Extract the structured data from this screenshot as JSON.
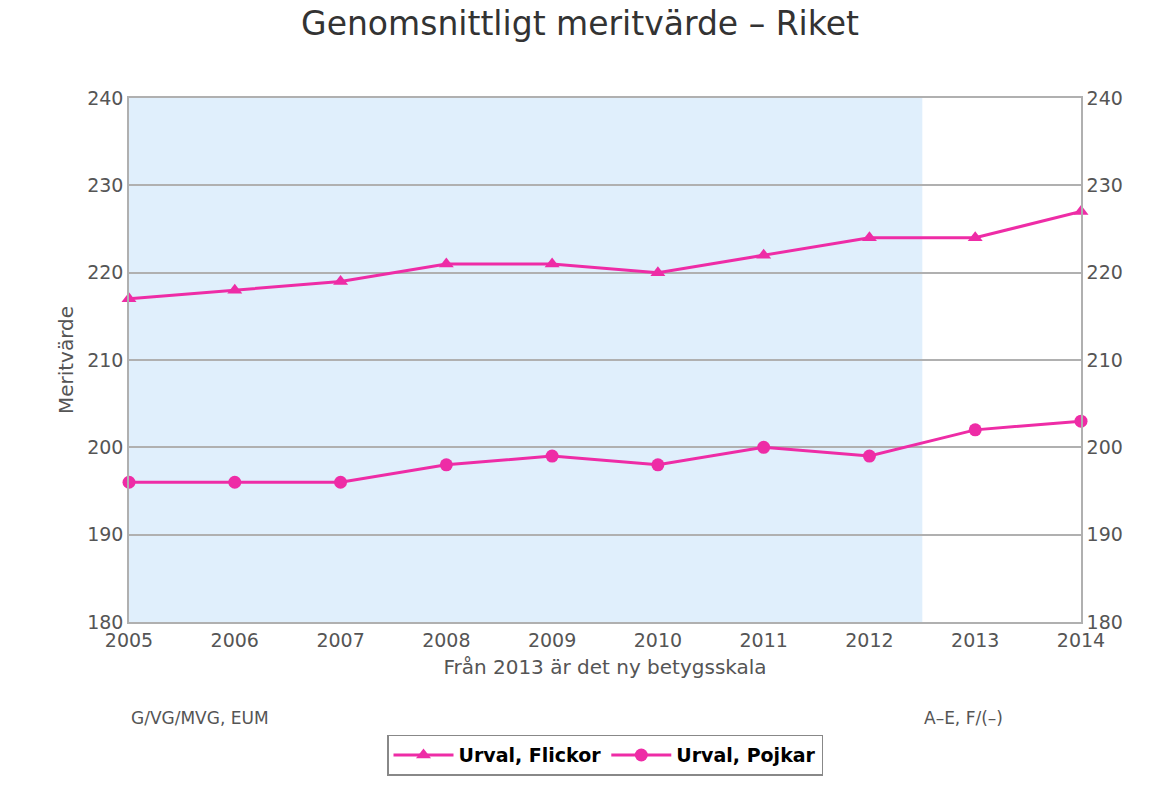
{
  "chart_data": {
    "type": "line",
    "title": "Genomsnittligt meritvärde – Riket",
    "x_label": "Från 2013 är det ny betygsskala",
    "y_label": "Meritvärde",
    "x": [
      2005,
      2006,
      2007,
      2008,
      2009,
      2010,
      2011,
      2012,
      2013,
      2014
    ],
    "series": [
      {
        "name": "Urval, Flickor",
        "color": "#ee2ca6",
        "marker": "triangle",
        "values": [
          217,
          218,
          219,
          221,
          221,
          220,
          222,
          224,
          224,
          227
        ]
      },
      {
        "name": "Urval, Pojkar",
        "color": "#ee2ca6",
        "marker": "circle",
        "values": [
          196,
          196,
          196,
          198,
          199,
          198,
          200,
          199,
          202,
          203
        ]
      }
    ],
    "xlim": [
      2005,
      2014
    ],
    "xticks": [
      2005,
      2006,
      2007,
      2008,
      2009,
      2010,
      2011,
      2012,
      2013,
      2014
    ],
    "ylim": [
      180,
      240
    ],
    "yticks": [
      180,
      190,
      200,
      210,
      220,
      230,
      240
    ],
    "y2lim": [
      180,
      240
    ],
    "y2ticks": [
      180,
      190,
      200,
      210,
      220,
      230,
      240
    ],
    "shaded_x": [
      2005,
      2012.5
    ],
    "annotations": [
      {
        "text": "G/VG/MVG, EUM"
      },
      {
        "text": "A–E, F/(–)"
      }
    ],
    "grid": true,
    "legend": "bottom"
  }
}
